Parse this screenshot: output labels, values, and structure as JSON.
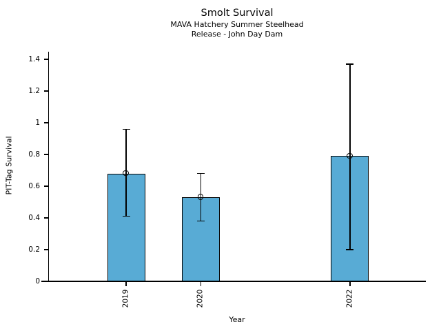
{
  "figure": {
    "title": "Smolt Survival",
    "subtitle_line1": "MAVA Hatchery Summer Steelhead",
    "subtitle_line2": "Release - John Day Dam"
  },
  "chart_data": {
    "type": "bar",
    "title": "Smolt Survival",
    "subtitle": [
      "MAVA Hatchery Summer Steelhead",
      "Release - John Day Dam"
    ],
    "xlabel": "Year",
    "ylabel": "PIT-Tag Survival",
    "categories": [
      "2019",
      "2020",
      "2022"
    ],
    "x": [
      2019,
      2020,
      2022
    ],
    "values": [
      0.68,
      0.53,
      0.79
    ],
    "error_low": [
      0.41,
      0.38,
      0.2
    ],
    "error_high": [
      0.96,
      0.68,
      1.37
    ],
    "ylim": [
      0,
      1.4
    ],
    "yticks": [
      0,
      0.2,
      0.4,
      0.6,
      0.8,
      1.0,
      1.2,
      1.4
    ],
    "ytick_labels": [
      "0",
      "0.2",
      "0.4",
      "0.6",
      "0.8",
      "1",
      "1.2",
      "1.4"
    ],
    "bar_color": "#58ABD5",
    "bar_edge_color": "#000000",
    "marker": "open-circle",
    "grid": false,
    "legend_position": "none",
    "x_tick_label_rotation": 90
  }
}
